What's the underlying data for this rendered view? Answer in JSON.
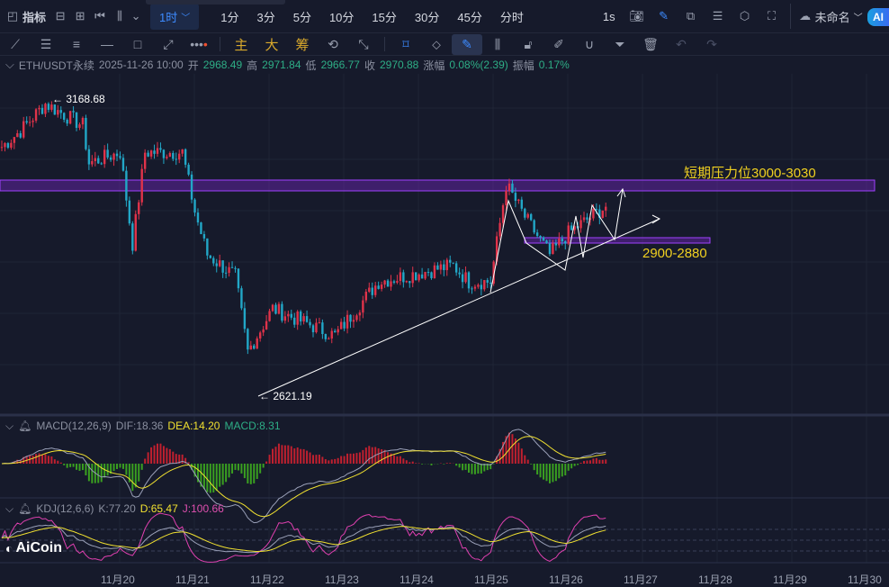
{
  "topbar": {
    "indicators_label": "指标",
    "active_timeframe": "1时",
    "timeframes": [
      "1分",
      "3分",
      "5分",
      "10分",
      "15分",
      "30分",
      "45分",
      "分时"
    ],
    "seconds_label": "1s",
    "layout_name": "未命名",
    "ai_label": "AI"
  },
  "toolbar": {
    "main_label": "主",
    "large_label": "大",
    "chip_label": "筹"
  },
  "info": {
    "symbol": "ETH/USDT永续",
    "datetime": "2025-11-26 10:00",
    "open_label": "开",
    "open": "2968.49",
    "high_label": "高",
    "high": "2971.84",
    "low_label": "低",
    "low": "2966.77",
    "close_label": "收",
    "close": "2970.88",
    "change_label": "涨幅",
    "change": "0.08%(2.39)",
    "amp_label": "振幅",
    "amp": "0.17%"
  },
  "annotations": {
    "high_marker": "3168.68",
    "low_marker": "2621.19",
    "resistance_label": "短期压力位3000-3030",
    "support_label": "2900-2880"
  },
  "macd": {
    "title": "MACD(12,26,9)",
    "dif": "DIF:18.36",
    "dea": "DEA:14.20",
    "macd": "MACD:8.31"
  },
  "kdj": {
    "title": "KDJ(12,6,6)",
    "k": "K:77.20",
    "d": "D:65.47",
    "j": "J:100.66"
  },
  "xaxis": [
    "11月20",
    "11月21",
    "11月22",
    "11月23",
    "11月24",
    "11月25",
    "11月26",
    "11月27",
    "11月28",
    "11月29",
    "11月30"
  ],
  "logo": "AiCoin",
  "colors": {
    "up": "#e0334a",
    "down": "#22a7c7",
    "zone": "#8a2be2",
    "label": "#f0d020"
  },
  "chart_data": {
    "type": "candlestick",
    "price_waypoints": [
      [
        0,
        3080
      ],
      [
        6,
        3110
      ],
      [
        14,
        3160
      ],
      [
        26,
        3120
      ],
      [
        28,
        3050
      ],
      [
        38,
        3070
      ],
      [
        42,
        2900
      ],
      [
        46,
        3070
      ],
      [
        58,
        3070
      ],
      [
        62,
        2960
      ],
      [
        66,
        2880
      ],
      [
        75,
        2840
      ],
      [
        79,
        2700
      ],
      [
        87,
        2780
      ],
      [
        107,
        2730
      ],
      [
        121,
        2830
      ],
      [
        145,
        2860
      ],
      [
        150,
        2830
      ],
      [
        157,
        2830
      ],
      [
        162,
        3010
      ],
      [
        168,
        2950
      ],
      [
        176,
        2880
      ],
      [
        182,
        2920
      ],
      [
        194,
        2970
      ]
    ],
    "resistance_zone": [
      3000,
      3030
    ],
    "support_zone": [
      2880,
      2900
    ]
  }
}
